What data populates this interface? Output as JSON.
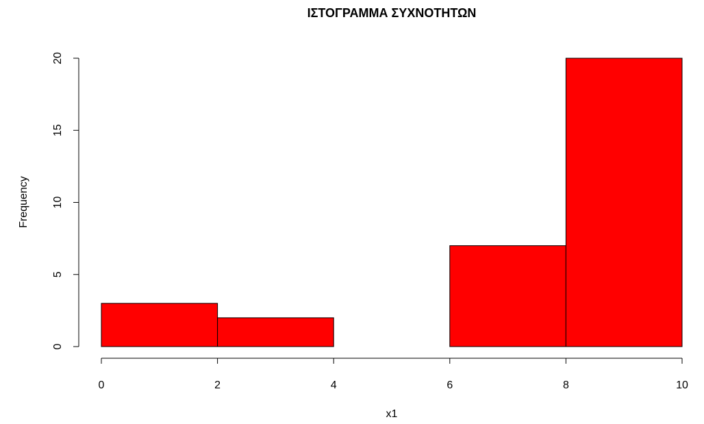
{
  "chart_data": {
    "type": "histogram",
    "title": "ΙΣΤΟΓΡΑΜΜΑ ΣΥΧΝΟΤΗΤΩΝ",
    "x_label": "x1",
    "y_label": "Frequency",
    "bins": [
      0,
      2,
      4,
      6,
      8,
      10
    ],
    "values": [
      3,
      2,
      0,
      7,
      20
    ],
    "color": "#ff0000",
    "xlim": [
      0,
      10
    ],
    "xticks": [
      0,
      2,
      4,
      6,
      8,
      10
    ],
    "ylim": [
      0,
      20
    ],
    "yticks": [
      0,
      5,
      10,
      15,
      20
    ]
  }
}
